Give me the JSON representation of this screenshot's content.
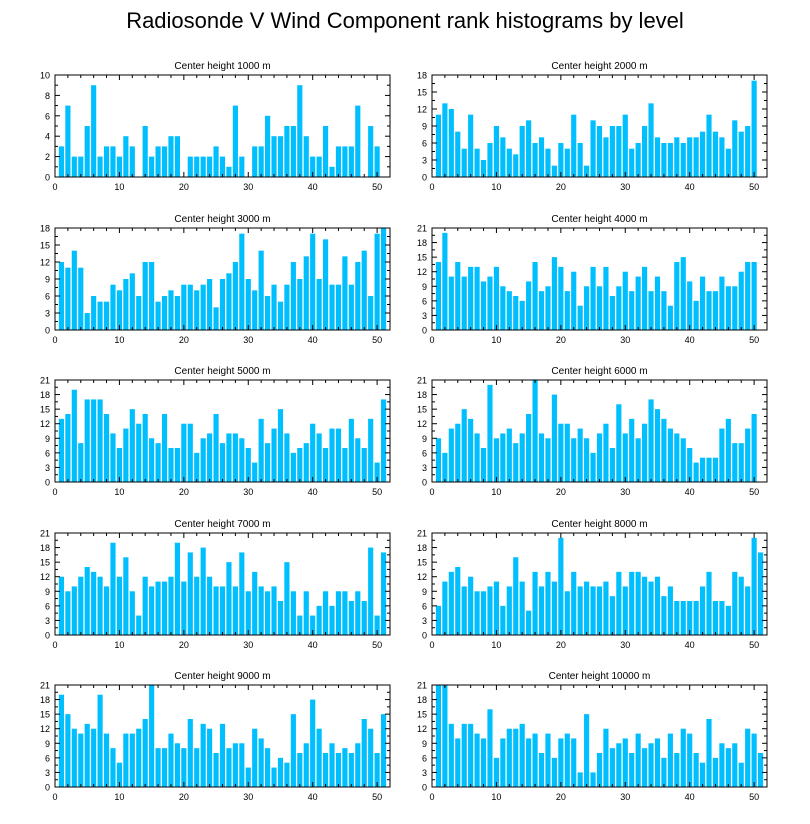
{
  "title": "Radiosonde V Wind Component rank histograms by level",
  "chart_data": [
    {
      "type": "bar",
      "title": "Center height 1000 m",
      "x": [
        1,
        2,
        3,
        4,
        5,
        6,
        7,
        8,
        9,
        10,
        11,
        12,
        13,
        14,
        15,
        16,
        17,
        18,
        19,
        20,
        21,
        22,
        23,
        24,
        25,
        26,
        27,
        28,
        29,
        30,
        31,
        32,
        33,
        34,
        35,
        36,
        37,
        38,
        39,
        40,
        41,
        42,
        43,
        44,
        45,
        46,
        47,
        48,
        49,
        50,
        51
      ],
      "values": [
        3,
        7,
        2,
        2,
        5,
        9,
        2,
        3,
        3,
        2,
        4,
        3,
        0,
        5,
        2,
        3,
        3,
        4,
        4,
        0,
        2,
        2,
        2,
        2,
        3,
        2,
        1,
        7,
        2,
        0,
        3,
        3,
        6,
        4,
        4,
        5,
        5,
        9,
        4,
        2,
        2,
        5,
        1,
        3,
        3,
        3,
        7,
        0,
        5,
        3,
        0
      ],
      "ylim": [
        0,
        10
      ],
      "yticks": [
        0,
        2,
        4,
        6,
        8,
        10
      ],
      "xticks": [
        0,
        10,
        20,
        30,
        40,
        50
      ],
      "xlim": [
        0,
        52
      ]
    },
    {
      "type": "bar",
      "title": "Center height 2000 m",
      "x": [
        1,
        2,
        3,
        4,
        5,
        6,
        7,
        8,
        9,
        10,
        11,
        12,
        13,
        14,
        15,
        16,
        17,
        18,
        19,
        20,
        21,
        22,
        23,
        24,
        25,
        26,
        27,
        28,
        29,
        30,
        31,
        32,
        33,
        34,
        35,
        36,
        37,
        38,
        39,
        40,
        41,
        42,
        43,
        44,
        45,
        46,
        47,
        48,
        49,
        50,
        51
      ],
      "values": [
        11,
        13,
        12,
        8,
        5,
        11,
        5,
        3,
        6,
        9,
        7,
        5,
        4,
        9,
        10,
        6,
        7,
        5,
        2,
        6,
        5,
        11,
        6,
        2,
        10,
        9,
        7,
        9,
        9,
        11,
        5,
        6,
        9,
        13,
        7,
        6,
        6,
        7,
        6,
        7,
        7,
        8,
        11,
        8,
        7,
        5,
        10,
        8,
        9,
        17,
        0
      ],
      "ylim": [
        0,
        18
      ],
      "yticks": [
        0,
        3,
        6,
        9,
        12,
        15,
        18
      ],
      "xticks": [
        0,
        10,
        20,
        30,
        40,
        50
      ],
      "xlim": [
        0,
        52
      ]
    },
    {
      "type": "bar",
      "title": "Center height 3000 m",
      "x": [
        1,
        2,
        3,
        4,
        5,
        6,
        7,
        8,
        9,
        10,
        11,
        12,
        13,
        14,
        15,
        16,
        17,
        18,
        19,
        20,
        21,
        22,
        23,
        24,
        25,
        26,
        27,
        28,
        29,
        30,
        31,
        32,
        33,
        34,
        35,
        36,
        37,
        38,
        39,
        40,
        41,
        42,
        43,
        44,
        45,
        46,
        47,
        48,
        49,
        50,
        51
      ],
      "values": [
        12,
        11,
        14,
        11,
        3,
        6,
        5,
        5,
        8,
        7,
        9,
        10,
        6,
        12,
        12,
        5,
        6,
        7,
        6,
        8,
        8,
        7,
        8,
        9,
        4,
        9,
        10,
        12,
        17,
        9,
        7,
        14,
        6,
        8,
        5,
        8,
        12,
        9,
        13,
        17,
        9,
        16,
        8,
        8,
        13,
        8,
        12,
        14,
        6,
        17,
        18
      ],
      "ylim": [
        0,
        18
      ],
      "yticks": [
        0,
        3,
        6,
        9,
        12,
        15,
        18
      ],
      "xticks": [
        0,
        10,
        20,
        30,
        40,
        50
      ],
      "xlim": [
        0,
        52
      ]
    },
    {
      "type": "bar",
      "title": "Center height 4000 m",
      "x": [
        1,
        2,
        3,
        4,
        5,
        6,
        7,
        8,
        9,
        10,
        11,
        12,
        13,
        14,
        15,
        16,
        17,
        18,
        19,
        20,
        21,
        22,
        23,
        24,
        25,
        26,
        27,
        28,
        29,
        30,
        31,
        32,
        33,
        34,
        35,
        36,
        37,
        38,
        39,
        40,
        41,
        42,
        43,
        44,
        45,
        46,
        47,
        48,
        49,
        50,
        51
      ],
      "values": [
        14,
        20,
        11,
        14,
        11,
        13,
        13,
        10,
        11,
        13,
        9,
        8,
        7,
        6,
        10,
        14,
        8,
        9,
        15,
        13,
        8,
        12,
        5,
        9,
        13,
        9,
        13,
        7,
        9,
        12,
        8,
        11,
        13,
        8,
        11,
        8,
        5,
        14,
        15,
        10,
        6,
        11,
        8,
        8,
        11,
        9,
        9,
        12,
        14,
        14,
        0
      ],
      "ylim": [
        0,
        21
      ],
      "yticks": [
        0,
        3,
        6,
        9,
        12,
        15,
        18,
        21
      ],
      "xticks": [
        0,
        10,
        20,
        30,
        40,
        50
      ],
      "xlim": [
        0,
        52
      ]
    },
    {
      "type": "bar",
      "title": "Center height 5000 m",
      "x": [
        1,
        2,
        3,
        4,
        5,
        6,
        7,
        8,
        9,
        10,
        11,
        12,
        13,
        14,
        15,
        16,
        17,
        18,
        19,
        20,
        21,
        22,
        23,
        24,
        25,
        26,
        27,
        28,
        29,
        30,
        31,
        32,
        33,
        34,
        35,
        36,
        37,
        38,
        39,
        40,
        41,
        42,
        43,
        44,
        45,
        46,
        47,
        48,
        49,
        50,
        51
      ],
      "values": [
        13,
        14,
        19,
        8,
        17,
        17,
        17,
        14,
        10,
        7,
        11,
        15,
        12,
        14,
        9,
        8,
        14,
        7,
        7,
        12,
        12,
        6,
        9,
        10,
        14,
        8,
        10,
        10,
        9,
        7,
        4,
        13,
        8,
        11,
        15,
        10,
        6,
        7,
        8,
        12,
        10,
        7,
        11,
        11,
        7,
        13,
        9,
        7,
        13,
        4,
        17
      ],
      "ylim": [
        0,
        21
      ],
      "yticks": [
        0,
        3,
        6,
        9,
        12,
        15,
        18,
        21
      ],
      "xticks": [
        0,
        10,
        20,
        30,
        40,
        50
      ],
      "xlim": [
        0,
        52
      ]
    },
    {
      "type": "bar",
      "title": "Center height 6000 m",
      "x": [
        1,
        2,
        3,
        4,
        5,
        6,
        7,
        8,
        9,
        10,
        11,
        12,
        13,
        14,
        15,
        16,
        17,
        18,
        19,
        20,
        21,
        22,
        23,
        24,
        25,
        26,
        27,
        28,
        29,
        30,
        31,
        32,
        33,
        34,
        35,
        36,
        37,
        38,
        39,
        40,
        41,
        42,
        43,
        44,
        45,
        46,
        47,
        48,
        49,
        50,
        51
      ],
      "values": [
        9,
        6,
        11,
        12,
        15,
        13,
        10,
        7,
        20,
        9,
        10,
        11,
        8,
        10,
        14,
        21,
        10,
        9,
        18,
        12,
        12,
        9,
        11,
        9,
        6,
        10,
        12,
        7,
        16,
        10,
        13,
        9,
        12,
        17,
        15,
        13,
        11,
        10,
        9,
        7,
        4,
        5,
        5,
        5,
        11,
        13,
        8,
        8,
        11,
        14,
        0
      ],
      "ylim": [
        0,
        21
      ],
      "yticks": [
        0,
        3,
        6,
        9,
        12,
        15,
        18,
        21
      ],
      "xticks": [
        0,
        10,
        20,
        30,
        40,
        50
      ],
      "xlim": [
        0,
        52
      ]
    },
    {
      "type": "bar",
      "title": "Center height 7000 m",
      "x": [
        1,
        2,
        3,
        4,
        5,
        6,
        7,
        8,
        9,
        10,
        11,
        12,
        13,
        14,
        15,
        16,
        17,
        18,
        19,
        20,
        21,
        22,
        23,
        24,
        25,
        26,
        27,
        28,
        29,
        30,
        31,
        32,
        33,
        34,
        35,
        36,
        37,
        38,
        39,
        40,
        41,
        42,
        43,
        44,
        45,
        46,
        47,
        48,
        49,
        50,
        51
      ],
      "values": [
        12,
        9,
        10,
        12,
        14,
        13,
        12,
        10,
        19,
        12,
        16,
        9,
        4,
        12,
        10,
        11,
        11,
        12,
        19,
        11,
        17,
        12,
        18,
        12,
        10,
        10,
        15,
        10,
        17,
        9,
        13,
        10,
        9,
        10,
        7,
        15,
        9,
        4,
        9,
        4,
        6,
        9,
        6,
        9,
        9,
        7,
        9,
        7,
        18,
        4,
        17
      ],
      "ylim": [
        0,
        21
      ],
      "yticks": [
        0,
        3,
        6,
        9,
        12,
        15,
        18,
        21
      ],
      "xticks": [
        0,
        10,
        20,
        30,
        40,
        50
      ],
      "xlim": [
        0,
        52
      ]
    },
    {
      "type": "bar",
      "title": "Center height 8000 m",
      "x": [
        1,
        2,
        3,
        4,
        5,
        6,
        7,
        8,
        9,
        10,
        11,
        12,
        13,
        14,
        15,
        16,
        17,
        18,
        19,
        20,
        21,
        22,
        23,
        24,
        25,
        26,
        27,
        28,
        29,
        30,
        31,
        32,
        33,
        34,
        35,
        36,
        37,
        38,
        39,
        40,
        41,
        42,
        43,
        44,
        45,
        46,
        47,
        48,
        49,
        50,
        51
      ],
      "values": [
        6,
        11,
        13,
        14,
        10,
        12,
        9,
        9,
        10,
        11,
        6,
        10,
        16,
        11,
        5,
        13,
        10,
        13,
        11,
        20,
        9,
        13,
        10,
        11,
        10,
        10,
        11,
        8,
        13,
        10,
        13,
        13,
        12,
        11,
        12,
        8,
        10,
        7,
        7,
        7,
        7,
        10,
        13,
        7,
        7,
        6,
        13,
        12,
        10,
        20,
        17
      ],
      "ylim": [
        0,
        21
      ],
      "yticks": [
        0,
        3,
        6,
        9,
        12,
        15,
        18,
        21
      ],
      "xticks": [
        0,
        10,
        20,
        30,
        40,
        50
      ],
      "xlim": [
        0,
        52
      ]
    },
    {
      "type": "bar",
      "title": "Center height 9000 m",
      "x": [
        1,
        2,
        3,
        4,
        5,
        6,
        7,
        8,
        9,
        10,
        11,
        12,
        13,
        14,
        15,
        16,
        17,
        18,
        19,
        20,
        21,
        22,
        23,
        24,
        25,
        26,
        27,
        28,
        29,
        30,
        31,
        32,
        33,
        34,
        35,
        36,
        37,
        38,
        39,
        40,
        41,
        42,
        43,
        44,
        45,
        46,
        47,
        48,
        49,
        50,
        51
      ],
      "values": [
        19,
        15,
        12,
        11,
        13,
        12,
        19,
        11,
        8,
        5,
        11,
        11,
        12,
        14,
        21,
        8,
        8,
        11,
        9,
        8,
        14,
        8,
        13,
        12,
        7,
        13,
        8,
        9,
        9,
        4,
        12,
        10,
        8,
        4,
        6,
        5,
        15,
        7,
        9,
        18,
        12,
        7,
        9,
        7,
        8,
        7,
        9,
        14,
        12,
        7,
        15
      ],
      "ylim": [
        0,
        21
      ],
      "yticks": [
        0,
        3,
        6,
        9,
        12,
        15,
        18,
        21
      ],
      "xticks": [
        0,
        10,
        20,
        30,
        40,
        50
      ],
      "xlim": [
        0,
        52
      ]
    },
    {
      "type": "bar",
      "title": "Center height 10000 m",
      "x": [
        1,
        2,
        3,
        4,
        5,
        6,
        7,
        8,
        9,
        10,
        11,
        12,
        13,
        14,
        15,
        16,
        17,
        18,
        19,
        20,
        21,
        22,
        23,
        24,
        25,
        26,
        27,
        28,
        29,
        30,
        31,
        32,
        33,
        34,
        35,
        36,
        37,
        38,
        39,
        40,
        41,
        42,
        43,
        44,
        45,
        46,
        47,
        48,
        49,
        50,
        51
      ],
      "values": [
        21,
        21,
        13,
        10,
        13,
        13,
        11,
        10,
        16,
        6,
        10,
        12,
        12,
        13,
        10,
        11,
        7,
        11,
        6,
        10,
        11,
        10,
        3,
        15,
        3,
        7,
        12,
        8,
        9,
        10,
        7,
        11,
        8,
        9,
        10,
        6,
        11,
        7,
        12,
        11,
        7,
        5,
        14,
        6,
        9,
        8,
        9,
        5,
        12,
        11,
        7
      ],
      "ylim": [
        0,
        21
      ],
      "yticks": [
        0,
        3,
        6,
        9,
        12,
        15,
        18,
        21
      ],
      "xticks": [
        0,
        10,
        20,
        30,
        40,
        50
      ],
      "xlim": [
        0,
        52
      ]
    }
  ],
  "colors": {
    "bar_fill": "#00bfff",
    "axis": "#000000",
    "background": "#ffffff"
  }
}
